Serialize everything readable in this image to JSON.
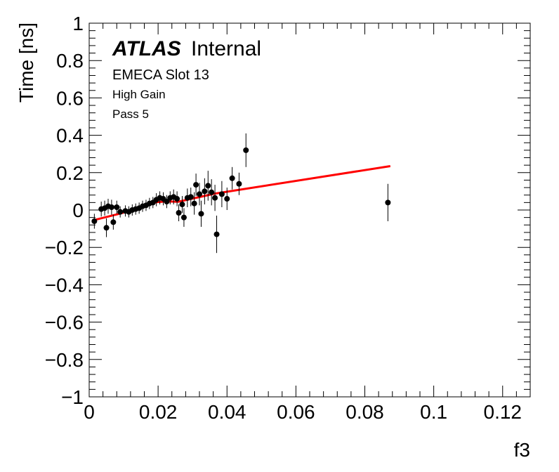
{
  "chart_data": {
    "type": "scatter",
    "title": "",
    "xlabel": "f3",
    "ylabel": "Time [ns]",
    "xlim": [
      0,
      0.128
    ],
    "ylim": [
      -1,
      1
    ],
    "x_ticks": [
      0,
      0.02,
      0.04,
      0.06,
      0.08,
      0.1,
      0.12
    ],
    "x_tick_labels": [
      "0",
      "0.02",
      "0.04",
      "0.06",
      "0.08",
      "0.1",
      "0.12"
    ],
    "y_ticks": [
      -1,
      -0.8,
      -0.6,
      -0.4,
      -0.2,
      0,
      0.2,
      0.4,
      0.6,
      0.8,
      1
    ],
    "y_tick_labels": [
      "−1",
      "−0.8",
      "−0.6",
      "−0.4",
      "−0.2",
      "0",
      "0.2",
      "0.4",
      "0.6",
      "0.8",
      "1"
    ],
    "grid": false,
    "annotations": {
      "atlas_bold": "ATLAS",
      "atlas_rest": "Internal",
      "line1": "EMECA Slot 13",
      "line2": "High Gain",
      "line3": "Pass 5"
    },
    "series": [
      {
        "type": "scatter-errorbars",
        "color": "#000000",
        "points": [
          {
            "x": 0.0015,
            "y": -0.06,
            "err": 0.04
          },
          {
            "x": 0.0035,
            "y": 0.005,
            "err": 0.04
          },
          {
            "x": 0.0045,
            "y": 0.01,
            "err": 0.04
          },
          {
            "x": 0.005,
            "y": -0.095,
            "err": 0.05
          },
          {
            "x": 0.0055,
            "y": 0.02,
            "err": 0.04
          },
          {
            "x": 0.0065,
            "y": 0.015,
            "err": 0.04
          },
          {
            "x": 0.007,
            "y": -0.065,
            "err": 0.04
          },
          {
            "x": 0.008,
            "y": 0.015,
            "err": 0.035
          },
          {
            "x": 0.009,
            "y": -0.01,
            "err": 0.03
          },
          {
            "x": 0.0105,
            "y": -0.005,
            "err": 0.03
          },
          {
            "x": 0.0115,
            "y": -0.01,
            "err": 0.03
          },
          {
            "x": 0.0125,
            "y": 0.0,
            "err": 0.03
          },
          {
            "x": 0.0135,
            "y": 0.005,
            "err": 0.03
          },
          {
            "x": 0.0145,
            "y": 0.01,
            "err": 0.03
          },
          {
            "x": 0.0155,
            "y": 0.02,
            "err": 0.03
          },
          {
            "x": 0.0165,
            "y": 0.025,
            "err": 0.03
          },
          {
            "x": 0.0175,
            "y": 0.035,
            "err": 0.03
          },
          {
            "x": 0.0185,
            "y": 0.04,
            "err": 0.03
          },
          {
            "x": 0.0195,
            "y": 0.055,
            "err": 0.035
          },
          {
            "x": 0.0205,
            "y": 0.065,
            "err": 0.035
          },
          {
            "x": 0.0215,
            "y": 0.06,
            "err": 0.035
          },
          {
            "x": 0.0225,
            "y": 0.045,
            "err": 0.035
          },
          {
            "x": 0.0235,
            "y": 0.065,
            "err": 0.035
          },
          {
            "x": 0.0245,
            "y": 0.07,
            "err": 0.04
          },
          {
            "x": 0.0255,
            "y": 0.06,
            "err": 0.04
          },
          {
            "x": 0.026,
            "y": -0.015,
            "err": 0.045
          },
          {
            "x": 0.027,
            "y": 0.03,
            "err": 0.045
          },
          {
            "x": 0.0275,
            "y": -0.04,
            "err": 0.05
          },
          {
            "x": 0.0285,
            "y": 0.065,
            "err": 0.05
          },
          {
            "x": 0.0295,
            "y": 0.07,
            "err": 0.05
          },
          {
            "x": 0.0305,
            "y": 0.035,
            "err": 0.06
          },
          {
            "x": 0.031,
            "y": 0.135,
            "err": 0.06
          },
          {
            "x": 0.032,
            "y": 0.085,
            "err": 0.06
          },
          {
            "x": 0.0325,
            "y": -0.02,
            "err": 0.07
          },
          {
            "x": 0.0335,
            "y": 0.1,
            "err": 0.07
          },
          {
            "x": 0.0345,
            "y": 0.13,
            "err": 0.08
          },
          {
            "x": 0.0355,
            "y": 0.095,
            "err": 0.07
          },
          {
            "x": 0.0365,
            "y": 0.065,
            "err": 0.07
          },
          {
            "x": 0.037,
            "y": -0.13,
            "err": 0.1
          },
          {
            "x": 0.0385,
            "y": 0.085,
            "err": 0.07
          },
          {
            "x": 0.04,
            "y": 0.06,
            "err": 0.06
          },
          {
            "x": 0.0415,
            "y": 0.17,
            "err": 0.06
          },
          {
            "x": 0.0435,
            "y": 0.14,
            "err": 0.06
          },
          {
            "x": 0.0455,
            "y": 0.32,
            "err": 0.09
          },
          {
            "x": 0.0867,
            "y": 0.04,
            "err": 0.1
          }
        ]
      },
      {
        "type": "line",
        "color": "#ff0000",
        "points": [
          {
            "x": 0.0012,
            "y": -0.055
          },
          {
            "x": 0.0092,
            "y": -0.018
          },
          {
            "x": 0.0152,
            "y": 0.015
          },
          {
            "x": 0.0195,
            "y": 0.042
          },
          {
            "x": 0.0225,
            "y": 0.046
          },
          {
            "x": 0.0258,
            "y": 0.044
          },
          {
            "x": 0.0365,
            "y": 0.088
          },
          {
            "x": 0.0874,
            "y": 0.235
          }
        ]
      }
    ]
  }
}
